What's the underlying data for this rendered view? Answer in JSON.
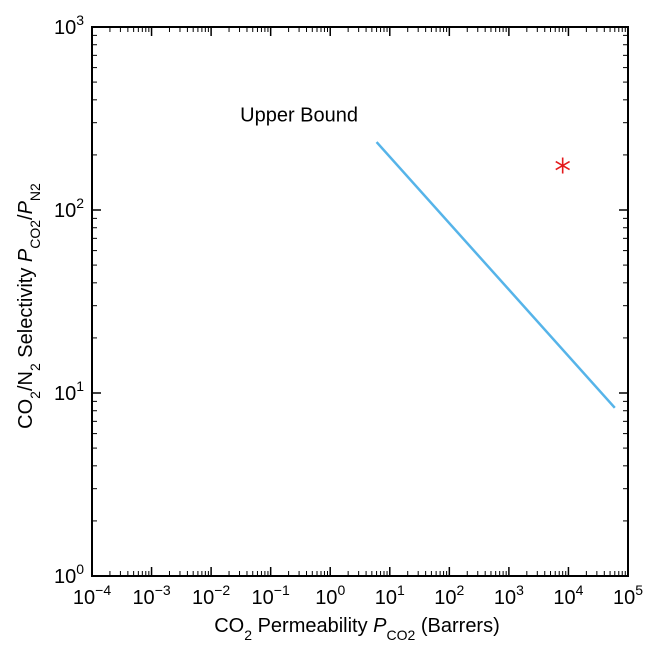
{
  "chart_data": {
    "type": "line",
    "title": "",
    "xscale": "log",
    "yscale": "log",
    "xlim": [
      0.0001,
      100000
    ],
    "ylim": [
      1,
      1000
    ],
    "grid": false,
    "legend": "none",
    "xlabel": {
      "before": "CO",
      "sub1": "2",
      "middle": " Permeability ",
      "italic": "P",
      "sub2": "CO2",
      "after": " (Barrers)"
    },
    "ylabel": {
      "before": "CO",
      "sub1": "2",
      "slash": "/N",
      "sub2": "2",
      "middle": " Selectivity ",
      "italic1": "P",
      "sub3": "CO2",
      "slash2": "/",
      "italic2": "P",
      "sub4": "N2"
    },
    "xticks": [
      {
        "value": 0.0001,
        "base": "10",
        "exp": "−4"
      },
      {
        "value": 0.001,
        "base": "10",
        "exp": "−3"
      },
      {
        "value": 0.01,
        "base": "10",
        "exp": "−2"
      },
      {
        "value": 0.1,
        "base": "10",
        "exp": "−1"
      },
      {
        "value": 1,
        "base": "10",
        "exp": "0"
      },
      {
        "value": 10,
        "base": "10",
        "exp": "1"
      },
      {
        "value": 100,
        "base": "10",
        "exp": "2"
      },
      {
        "value": 1000,
        "base": "10",
        "exp": "3"
      },
      {
        "value": 10000,
        "base": "10",
        "exp": "4"
      },
      {
        "value": 100000,
        "base": "10",
        "exp": "5"
      }
    ],
    "yticks": [
      {
        "value": 1,
        "base": "10",
        "exp": "0"
      },
      {
        "value": 10,
        "base": "10",
        "exp": "1"
      },
      {
        "value": 100,
        "base": "10",
        "exp": "2"
      },
      {
        "value": 1000,
        "base": "10",
        "exp": "3"
      }
    ],
    "series": [
      {
        "kind": "line",
        "color": "#56b4e9",
        "points": [
          [
            6.0,
            235
          ],
          [
            60000,
            8.3
          ]
        ]
      },
      {
        "kind": "marker",
        "marker": "asterisk",
        "color": "#e41a1c",
        "points": [
          [
            8000,
            175
          ]
        ]
      }
    ],
    "annotations": [
      {
        "text": "Upper Bound",
        "x": 0.3,
        "y": 305
      }
    ]
  }
}
